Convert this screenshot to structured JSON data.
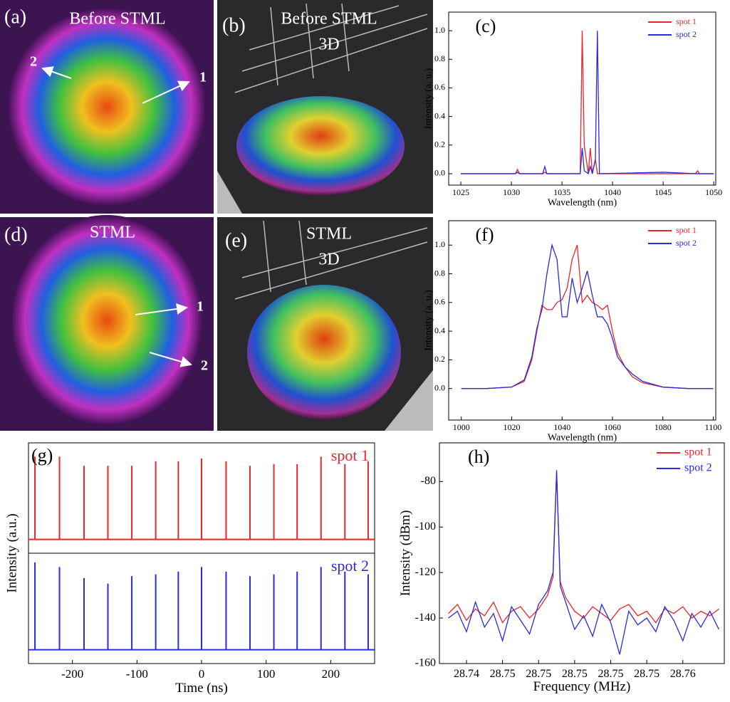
{
  "images": [
    {
      "panel_label": "(a)",
      "lines": [
        "Before STML"
      ],
      "markers": [
        "2",
        "1"
      ]
    },
    {
      "panel_label": "(b)",
      "lines": [
        "Before STML",
        "3D"
      ]
    },
    {
      "panel_label": "(d)",
      "lines": [
        "STML"
      ],
      "markers": [
        "1",
        "2"
      ]
    },
    {
      "panel_label": "(e)",
      "lines": [
        "STML",
        "3D"
      ]
    }
  ],
  "chart_data": [
    {
      "type": "line",
      "panel_label": "(c)",
      "x_label": "Wavelength (nm)",
      "y_label": "Intensity (a. u.)",
      "x": [
        1025,
        1030.4,
        1030.6,
        1030.8,
        1033.1,
        1033.3,
        1033.5,
        1036.8,
        1037.0,
        1037.2,
        1037.6,
        1037.8,
        1038.0,
        1038.3,
        1038.5,
        1038.7,
        1045,
        1048.2,
        1048.4,
        1048.6,
        1050
      ],
      "series": [
        {
          "name": "spot 1",
          "color": "#e8262b",
          "values": [
            0,
            0,
            0.03,
            0,
            0,
            0.01,
            0,
            0,
            1.0,
            0.2,
            0,
            0.18,
            0,
            0.1,
            0,
            0,
            0,
            0,
            0.02,
            0,
            0
          ]
        },
        {
          "name": "spot 2",
          "color": "#2a2ae0",
          "values": [
            0,
            0,
            0.01,
            0,
            0,
            0.05,
            0,
            0,
            0.18,
            0.02,
            0,
            0.05,
            0,
            0.1,
            1.0,
            0,
            0.01,
            0,
            0,
            0,
            0
          ]
        }
      ],
      "xlim": [
        1023.8,
        1050.2
      ],
      "xticks": [
        1025,
        1030,
        1035,
        1040,
        1045,
        1050
      ],
      "ylim": [
        -0.08,
        1.13
      ],
      "yticks": [
        {
          "value": 0,
          "label": "0.0"
        },
        {
          "value": 0.2,
          "label": "0.2"
        },
        {
          "value": 0.4,
          "label": "0.4"
        },
        {
          "value": 0.6,
          "label": "0.6"
        },
        {
          "value": 0.8,
          "label": "0.8"
        },
        {
          "value": 1.0,
          "label": "1.0"
        }
      ]
    },
    {
      "type": "line",
      "panel_label": "(f)",
      "x_label": "Wavelength (nm)",
      "y_label": "Intensity (a. u.)",
      "x": [
        1000,
        1010,
        1020,
        1025,
        1028,
        1030,
        1032,
        1034,
        1036,
        1038,
        1040,
        1042,
        1044,
        1046,
        1048,
        1050,
        1052,
        1054,
        1056,
        1058,
        1060,
        1062,
        1065,
        1068,
        1072,
        1080,
        1090,
        1100
      ],
      "series": [
        {
          "name": "spot 1",
          "color": "#e8262b",
          "values": [
            0,
            0,
            0.01,
            0.05,
            0.2,
            0.4,
            0.58,
            0.55,
            0.55,
            0.6,
            0.62,
            0.7,
            0.9,
            1.0,
            0.6,
            0.65,
            0.6,
            0.58,
            0.55,
            0.58,
            0.4,
            0.25,
            0.15,
            0.08,
            0.04,
            0.01,
            0,
            0
          ]
        },
        {
          "name": "spot 2",
          "color": "#2a2ae0",
          "values": [
            0,
            0,
            0.01,
            0.06,
            0.22,
            0.42,
            0.55,
            0.8,
            1.0,
            0.9,
            0.5,
            0.5,
            0.77,
            0.6,
            0.7,
            0.82,
            0.65,
            0.5,
            0.5,
            0.45,
            0.35,
            0.22,
            0.15,
            0.1,
            0.05,
            0.01,
            0,
            0
          ]
        }
      ],
      "xlim": [
        995,
        1101
      ],
      "xticks": [
        1000,
        1020,
        1040,
        1060,
        1080,
        1100
      ],
      "ylim": [
        -0.22,
        1.17
      ],
      "yticks": [
        {
          "value": 0,
          "label": "0.0"
        },
        {
          "value": 0.2,
          "label": "0.2"
        },
        {
          "value": 0.4,
          "label": "0.4"
        },
        {
          "value": 0.6,
          "label": "0.6"
        },
        {
          "value": 0.8,
          "label": "0.8"
        },
        {
          "value": 1.0,
          "label": "1.0"
        }
      ]
    },
    {
      "type": "stem",
      "panel_label": "(g)",
      "x_label": "Time (ns)",
      "y_label": "Intensity (a.u.)",
      "x": [
        -258,
        -220,
        -182,
        -145,
        -108,
        -71,
        -36,
        0,
        38,
        75,
        112,
        148,
        185,
        222,
        258
      ],
      "series": [
        {
          "name": "spot 1",
          "color": "#e8262b",
          "values": [
            0.9,
            0.9,
            0.8,
            0.8,
            0.8,
            0.85,
            0.85,
            0.88,
            0.85,
            0.8,
            0.82,
            0.82,
            0.9,
            0.82,
            0.85
          ]
        },
        {
          "name": "spot 2",
          "color": "#2a2ae0",
          "values": [
            0.95,
            0.9,
            0.78,
            0.72,
            0.8,
            0.82,
            0.85,
            0.9,
            0.85,
            0.8,
            0.82,
            0.85,
            0.9,
            0.85,
            0.82
          ]
        }
      ],
      "xlim": [
        -268,
        268
      ],
      "xticks": [
        -200,
        -100,
        0,
        100,
        200
      ],
      "ylim": [
        -0.15,
        1.05
      ]
    },
    {
      "type": "line",
      "panel_label": "(h)",
      "x_label": "Frequency (MHz)",
      "y_label": "Intensity (dBm)",
      "x": [
        28.743,
        28.7435,
        28.744,
        28.7445,
        28.745,
        28.7455,
        28.746,
        28.7465,
        28.747,
        28.7475,
        28.748,
        28.7485,
        28.7488,
        28.749,
        28.7492,
        28.7495,
        28.75,
        28.7505,
        28.751,
        28.7515,
        28.752,
        28.7525,
        28.753,
        28.7535,
        28.754,
        28.7545,
        28.755,
        28.7555,
        28.756,
        28.7565,
        28.757,
        28.7575,
        28.758
      ],
      "series": [
        {
          "name": "spot 1",
          "color": "#e8262b",
          "values": [
            -138,
            -134,
            -141,
            -136,
            -139,
            -133,
            -142,
            -137,
            -135,
            -140,
            -136,
            -130,
            -122,
            -76,
            -124,
            -131,
            -137,
            -140,
            -135,
            -138,
            -141,
            -136,
            -134,
            -139,
            -137,
            -142,
            -136,
            -138,
            -135,
            -140,
            -137,
            -139,
            -136
          ]
        },
        {
          "name": "spot 2",
          "color": "#2a2ae0",
          "values": [
            -140,
            -137,
            -146,
            -133,
            -144,
            -138,
            -150,
            -135,
            -141,
            -147,
            -134,
            -128,
            -120,
            -75,
            -126,
            -133,
            -145,
            -139,
            -148,
            -134,
            -142,
            -156,
            -137,
            -143,
            -140,
            -146,
            -135,
            -141,
            -150,
            -138,
            -144,
            -137,
            -145
          ]
        }
      ],
      "xlim": [
        28.7425,
        28.7583
      ],
      "xticks": [
        {
          "value": 28.744,
          "label": "28.74"
        },
        {
          "value": 28.746,
          "label": "28.75"
        },
        {
          "value": 28.748,
          "label": "28.75"
        },
        {
          "value": 28.75,
          "label": "28.75"
        },
        {
          "value": 28.752,
          "label": "28.75"
        },
        {
          "value": 28.754,
          "label": "28.75"
        },
        {
          "value": 28.756,
          "label": "28.76"
        }
      ],
      "ylim": [
        -160,
        -63
      ],
      "yticks": [
        -160,
        -140,
        -120,
        -100,
        -80
      ]
    }
  ]
}
